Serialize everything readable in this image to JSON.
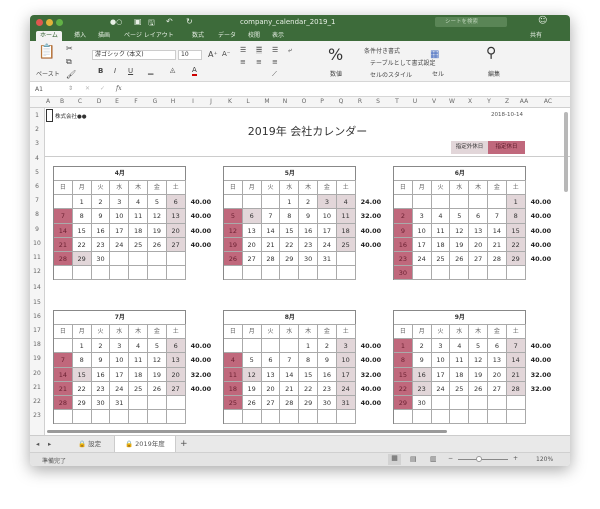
{
  "window": {
    "title": "company_calendar_2019_1",
    "search_placeholder": "シートを検索",
    "share_label": "共有"
  },
  "ribbon_tabs": [
    "ホーム",
    "挿入",
    "描画",
    "ページ レイアウト",
    "数式",
    "データ",
    "校閲",
    "表示"
  ],
  "ribbon": {
    "paste": "ペースト",
    "font_name": "游ゴシック (本文)",
    "font_size": "10",
    "bold": "B",
    "italic": "I",
    "underline": "U",
    "number_icon": "%",
    "number": "数値",
    "conditional_format": "条件付き書式",
    "format_as_table": "テーブルとして書式設定",
    "cell_styles": "セルのスタイル",
    "cells": "セル",
    "editing": "編集"
  },
  "formula_bar": {
    "name_box": "A1",
    "fx": "fx",
    "value": ""
  },
  "columns": [
    "A",
    "B",
    "C",
    "D",
    "E",
    "F",
    "G",
    "H",
    "I",
    "J",
    "K",
    "L",
    "M",
    "N",
    "O",
    "P",
    "Q",
    "R",
    "S",
    "T",
    "U",
    "V",
    "W",
    "X",
    "Y",
    "Z",
    "AA",
    "AC"
  ],
  "rows": [
    "1",
    "2",
    "3",
    "4",
    "5",
    "6",
    "7",
    "8",
    "9",
    "10",
    "11",
    "12",
    "14",
    "15",
    "16",
    "17",
    "18",
    "19",
    "20",
    "21",
    "22",
    "23",
    "25"
  ],
  "sheet": {
    "company": "株式会社●●",
    "date": "2018-10-14",
    "title": "2019年 会社カレンダー",
    "legend_light": "指定外休日",
    "legend_dark": "指定休日"
  },
  "colors": {
    "designated_holiday": "#c0687c",
    "other_holiday": "#e2d6d9",
    "titlebar": "#3d6b3a"
  },
  "weekdays": [
    "日",
    "月",
    "火",
    "水",
    "木",
    "金",
    "土"
  ],
  "months": [
    {
      "label": "4月",
      "weeks": [
        [
          null,
          1,
          2,
          3,
          4,
          5,
          6
        ],
        [
          7,
          8,
          9,
          10,
          11,
          12,
          13
        ],
        [
          14,
          15,
          16,
          17,
          18,
          19,
          20
        ],
        [
          21,
          22,
          23,
          24,
          25,
          26,
          27
        ],
        [
          28,
          29,
          30,
          null,
          null,
          null,
          null
        ],
        [
          null,
          null,
          null,
          null,
          null,
          null,
          null
        ]
      ],
      "holidays": [
        6,
        13,
        20,
        27,
        29
      ],
      "hours": [
        "40.00",
        "40.00",
        "40.00",
        "40.00"
      ]
    },
    {
      "label": "5月",
      "weeks": [
        [
          null,
          null,
          null,
          1,
          2,
          3,
          4
        ],
        [
          5,
          6,
          7,
          8,
          9,
          10,
          11
        ],
        [
          12,
          13,
          14,
          15,
          16,
          17,
          18
        ],
        [
          19,
          20,
          21,
          22,
          23,
          24,
          25
        ],
        [
          26,
          27,
          28,
          29,
          30,
          31,
          null
        ],
        [
          null,
          null,
          null,
          null,
          null,
          null,
          null
        ]
      ],
      "holidays": [
        3,
        4,
        6,
        11,
        18,
        25
      ],
      "hours": [
        "24.00",
        "32.00",
        "40.00",
        "40.00"
      ]
    },
    {
      "label": "6月",
      "weeks": [
        [
          null,
          null,
          null,
          null,
          null,
          null,
          1
        ],
        [
          2,
          3,
          4,
          5,
          6,
          7,
          8
        ],
        [
          9,
          10,
          11,
          12,
          13,
          14,
          15
        ],
        [
          16,
          17,
          18,
          19,
          20,
          21,
          22
        ],
        [
          23,
          24,
          25,
          26,
          27,
          28,
          29
        ],
        [
          30,
          null,
          null,
          null,
          null,
          null,
          null
        ]
      ],
      "holidays": [
        1,
        8,
        15,
        22,
        29
      ],
      "hours": [
        "40.00",
        "40.00",
        "40.00",
        "40.00",
        "40.00"
      ]
    },
    {
      "label": "7月",
      "weeks": [
        [
          null,
          1,
          2,
          3,
          4,
          5,
          6
        ],
        [
          7,
          8,
          9,
          10,
          11,
          12,
          13
        ],
        [
          14,
          15,
          16,
          17,
          18,
          19,
          20
        ],
        [
          21,
          22,
          23,
          24,
          25,
          26,
          27
        ],
        [
          28,
          29,
          30,
          31,
          null,
          null,
          null
        ],
        [
          null,
          null,
          null,
          null,
          null,
          null,
          null
        ]
      ],
      "holidays": [
        6,
        13,
        15,
        20,
        27
      ],
      "hours": [
        "40.00",
        "40.00",
        "32.00",
        "40.00"
      ]
    },
    {
      "label": "8月",
      "weeks": [
        [
          null,
          null,
          null,
          null,
          1,
          2,
          3
        ],
        [
          4,
          5,
          6,
          7,
          8,
          9,
          10
        ],
        [
          11,
          12,
          13,
          14,
          15,
          16,
          17
        ],
        [
          18,
          19,
          20,
          21,
          22,
          23,
          24
        ],
        [
          25,
          26,
          27,
          28,
          29,
          30,
          31
        ],
        [
          null,
          null,
          null,
          null,
          null,
          null,
          null
        ]
      ],
      "holidays": [
        3,
        10,
        12,
        17,
        24,
        31
      ],
      "hours": [
        "40.00",
        "40.00",
        "32.00",
        "40.00",
        "40.00"
      ]
    },
    {
      "label": "9月",
      "weeks": [
        [
          1,
          2,
          3,
          4,
          5,
          6,
          7
        ],
        [
          8,
          9,
          10,
          11,
          12,
          13,
          14
        ],
        [
          15,
          16,
          17,
          18,
          19,
          20,
          21
        ],
        [
          22,
          23,
          24,
          25,
          26,
          27,
          28
        ],
        [
          29,
          30,
          null,
          null,
          null,
          null,
          null
        ],
        [
          null,
          null,
          null,
          null,
          null,
          null,
          null
        ]
      ],
      "holidays": [
        7,
        14,
        16,
        21,
        23,
        28
      ],
      "hours": [
        "40.00",
        "40.00",
        "32.00",
        "32.00"
      ]
    }
  ],
  "sheet_tabs": [
    {
      "label": "設定",
      "locked": true
    },
    {
      "label": "2019年度",
      "locked": true
    }
  ],
  "add_sheet": "+",
  "status": {
    "text": "準備完了",
    "zoom": "120%",
    "zoom_level_percent": 120
  }
}
